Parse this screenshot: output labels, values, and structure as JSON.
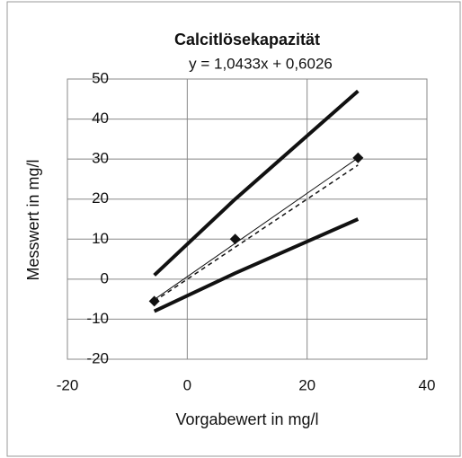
{
  "chart_data": {
    "type": "line",
    "title": "Calcitlösekapazität",
    "annotation": "y = 1,0433x + 0,6026",
    "xlabel": "Vorgabewert in mg/l",
    "ylabel": "Messwert in mg/l",
    "xlim": [
      -20,
      40
    ],
    "xticks": [
      -20,
      0,
      20,
      40
    ],
    "ylim": [
      -20,
      50
    ],
    "yticks": [
      -20,
      -10,
      0,
      10,
      20,
      30,
      40,
      50
    ],
    "grid": true,
    "series": [
      {
        "color": "#111111",
        "width": 4,
        "x": [
          -5.5,
          8,
          28.5
        ],
        "values": [
          1,
          20,
          47
        ]
      },
      {
        "color": "#111111",
        "width": 4,
        "x": [
          -5.5,
          8,
          28.5
        ],
        "values": [
          -8,
          1.5,
          15
        ]
      },
      {
        "color": "#111111",
        "width": 1.5,
        "dash": true,
        "x": [
          -5.5,
          28.5
        ],
        "values": [
          -5.5,
          28.5
        ]
      },
      {
        "color": "#111111",
        "width": 1,
        "x": [
          -5.5,
          28.5
        ],
        "values": [
          -5.1,
          30.3
        ]
      },
      {
        "color": "#111111",
        "marker": "diamond",
        "x": [
          -5.5,
          8,
          28.5
        ],
        "values": [
          -5.5,
          10,
          30.3
        ]
      }
    ]
  }
}
